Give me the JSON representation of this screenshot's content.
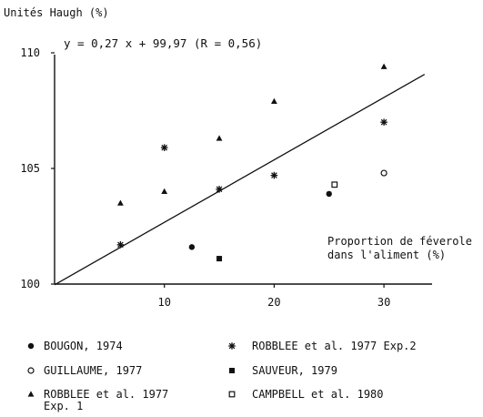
{
  "chart_data": {
    "type": "scatter",
    "title": "",
    "ylabel": "Unités Haugh (%)",
    "xlabel": "Proportion de féverole dans l'aliment (%)",
    "xlabel_lines": [
      "Proportion de féverole",
      "dans l'aliment (%)"
    ],
    "equation": "y = 0,27 x + 99,97 (R = 0,56)",
    "xlim": [
      0,
      35
    ],
    "ylim": [
      100,
      110
    ],
    "x_ticks": [
      10,
      20,
      30
    ],
    "y_ticks": [
      100,
      105,
      110
    ],
    "x_tick_labels": [
      "10",
      "20",
      "30"
    ],
    "y_tick_labels": [
      "100",
      "105",
      "110"
    ],
    "grid": false,
    "legend_position": "bottom",
    "regression": {
      "slope": 0.27,
      "intercept": 99.97,
      "x_range": [
        0,
        33.7
      ]
    },
    "series": [
      {
        "name": "BOUGON, 1974",
        "marker": "filled-circle",
        "points": [
          [
            12.5,
            101.6
          ],
          [
            25.0,
            103.9
          ]
        ]
      },
      {
        "name": "GUILLAUME, 1977",
        "marker": "open-circle",
        "points": [
          [
            30.0,
            104.8
          ]
        ]
      },
      {
        "name": "ROBBLEE et al. 1977 Exp. 1",
        "legend_lines": [
          "ROBBLEE et al. 1977",
          "Exp. 1"
        ],
        "marker": "triangle",
        "points": [
          [
            6,
            103.5
          ],
          [
            10,
            104.0
          ],
          [
            15,
            106.3
          ],
          [
            20,
            107.9
          ],
          [
            30,
            109.4
          ]
        ]
      },
      {
        "name": "ROBBLEE et al. 1977 Exp.2",
        "legend_lines": [
          "ROBBLEE et al. 1977 Exp.2"
        ],
        "marker": "asterisk",
        "points": [
          [
            6,
            101.7
          ],
          [
            10,
            105.9
          ],
          [
            15,
            104.1
          ],
          [
            20,
            104.7
          ],
          [
            30,
            107.0
          ]
        ]
      },
      {
        "name": "SAUVEUR, 1979",
        "marker": "filled-square",
        "points": [
          [
            15,
            101.1
          ]
        ]
      },
      {
        "name": "CAMPBELL et al. 1980",
        "marker": "open-square",
        "points": [
          [
            25.5,
            104.3
          ]
        ]
      }
    ]
  }
}
